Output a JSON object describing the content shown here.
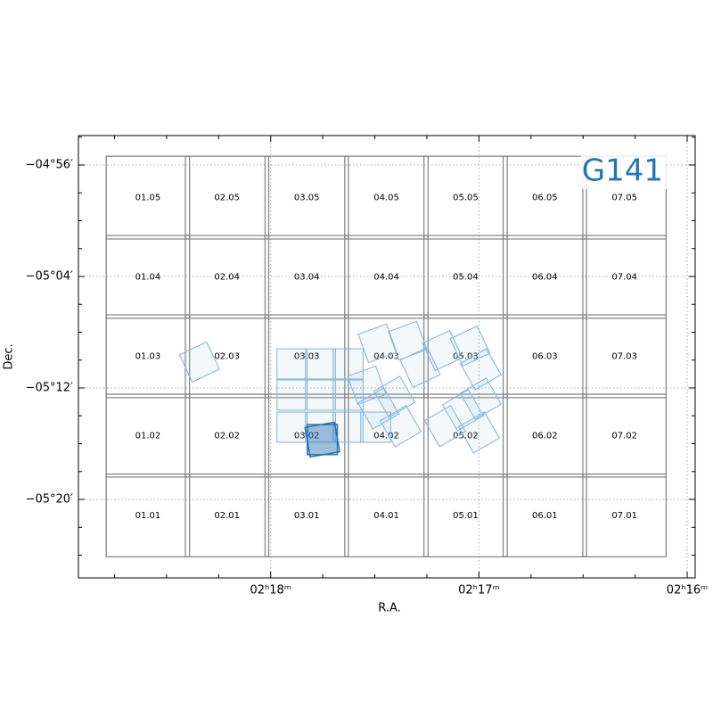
{
  "chart_data": {
    "type": "footprint",
    "title": "G141",
    "title_color": "#1f77b4",
    "xlabel": "R.A.",
    "ylabel": "Dec.",
    "xlim": [
      34.7308,
      33.9904
    ],
    "ylim": [
      -5.4272,
      -4.8981
    ],
    "xticks": [
      {
        "value": 34.5,
        "label": "02ʰ18ᵐ"
      },
      {
        "value": 34.25,
        "label": "02ʰ17ᵐ"
      },
      {
        "value": 34.0,
        "label": "02ʰ16ᵐ"
      }
    ],
    "yticks": [
      {
        "value": -4.9333,
        "label": "−04°56′"
      },
      {
        "value": -5.0667,
        "label": "−05°04′"
      },
      {
        "value": -5.2,
        "label": "−05°12′"
      },
      {
        "value": -5.3333,
        "label": "−05°20′"
      }
    ],
    "xminorticks": [
      34.6875,
      34.625,
      34.5625,
      34.4375,
      34.375,
      34.3125,
      34.1875,
      34.125,
      34.0625
    ],
    "yminorticks": [
      -4.9,
      -4.9667,
      -5.0,
      -5.0333,
      -5.1,
      -5.1333,
      -5.1667,
      -5.2333,
      -5.2667,
      -5.3,
      -5.3667,
      -5.4
    ],
    "grid": true,
    "tile_color": "#808080",
    "tile_width": 0.1,
    "tile_height": 0.099,
    "tiles": [
      {
        "label": "01.05",
        "ra": 34.6474,
        "dec": -4.9723
      },
      {
        "label": "02.05",
        "ra": 34.5524,
        "dec": -4.9723
      },
      {
        "label": "03.05",
        "ra": 34.4567,
        "dec": -4.9723
      },
      {
        "label": "04.05",
        "ra": 34.3611,
        "dec": -4.9723
      },
      {
        "label": "05.05",
        "ra": 34.266,
        "dec": -4.9723
      },
      {
        "label": "06.05",
        "ra": 34.1709,
        "dec": -4.9723
      },
      {
        "label": "07.05",
        "ra": 34.0753,
        "dec": -4.9723
      },
      {
        "label": "01.04",
        "ra": 34.6474,
        "dec": -5.0672
      },
      {
        "label": "02.04",
        "ra": 34.5524,
        "dec": -5.0672
      },
      {
        "label": "03.04",
        "ra": 34.4567,
        "dec": -5.0672
      },
      {
        "label": "04.04",
        "ra": 34.3611,
        "dec": -5.0672
      },
      {
        "label": "05.04",
        "ra": 34.266,
        "dec": -5.0672
      },
      {
        "label": "06.04",
        "ra": 34.1709,
        "dec": -5.0672
      },
      {
        "label": "07.04",
        "ra": 34.0753,
        "dec": -5.0672
      },
      {
        "label": "01.03",
        "ra": 34.6474,
        "dec": -5.1621
      },
      {
        "label": "02.03",
        "ra": 34.5524,
        "dec": -5.1621
      },
      {
        "label": "03.03",
        "ra": 34.4567,
        "dec": -5.1621
      },
      {
        "label": "04.03",
        "ra": 34.3611,
        "dec": -5.1621
      },
      {
        "label": "05.03",
        "ra": 34.266,
        "dec": -5.1621
      },
      {
        "label": "06.03",
        "ra": 34.1709,
        "dec": -5.1621
      },
      {
        "label": "07.03",
        "ra": 34.0753,
        "dec": -5.1621
      },
      {
        "label": "01.02",
        "ra": 34.6474,
        "dec": -5.2571
      },
      {
        "label": "02.02",
        "ra": 34.5524,
        "dec": -5.2571
      },
      {
        "label": "03.02",
        "ra": 34.4567,
        "dec": -5.2571
      },
      {
        "label": "04.02",
        "ra": 34.3611,
        "dec": -5.2571
      },
      {
        "label": "05.02",
        "ra": 34.266,
        "dec": -5.2571
      },
      {
        "label": "06.02",
        "ra": 34.1709,
        "dec": -5.2571
      },
      {
        "label": "07.02",
        "ra": 34.0753,
        "dec": -5.2571
      },
      {
        "label": "01.01",
        "ra": 34.6474,
        "dec": -5.3525
      },
      {
        "label": "02.01",
        "ra": 34.5524,
        "dec": -5.3525
      },
      {
        "label": "03.01",
        "ra": 34.4567,
        "dec": -5.3525
      },
      {
        "label": "04.01",
        "ra": 34.3611,
        "dec": -5.3525
      },
      {
        "label": "05.01",
        "ra": 34.266,
        "dec": -5.3525
      },
      {
        "label": "06.01",
        "ra": 34.1709,
        "dec": -5.3525
      },
      {
        "label": "07.01",
        "ra": 34.0753,
        "dec": -5.3525
      }
    ],
    "footprint_size": 0.036,
    "footprint_color": "#8db8dc",
    "highlight_color": "#1f6fb0",
    "footprints": [
      {
        "ra": 34.5855,
        "dec": -5.169,
        "angle": -25,
        "highlight": false
      },
      {
        "ra": 34.4744,
        "dec": -5.1712,
        "angle": 0,
        "highlight": false
      },
      {
        "ra": 34.4402,
        "dec": -5.1712,
        "angle": 0,
        "highlight": false
      },
      {
        "ra": 34.4071,
        "dec": -5.1712,
        "angle": 0,
        "highlight": false
      },
      {
        "ra": 34.4744,
        "dec": -5.2085,
        "angle": 0,
        "highlight": false
      },
      {
        "ra": 34.4402,
        "dec": -5.2085,
        "angle": 0,
        "highlight": false
      },
      {
        "ra": 34.4071,
        "dec": -5.2085,
        "angle": 0,
        "highlight": false
      },
      {
        "ra": 34.4744,
        "dec": -5.2469,
        "angle": 0,
        "highlight": false
      },
      {
        "ra": 34.4402,
        "dec": -5.2469,
        "angle": 0,
        "highlight": false
      },
      {
        "ra": 34.4071,
        "dec": -5.2469,
        "angle": 0,
        "highlight": false
      },
      {
        "ra": 34.3739,
        "dec": -5.2469,
        "angle": 0,
        "highlight": false
      },
      {
        "ra": 34.3718,
        "dec": -5.1466,
        "angle": -20,
        "highlight": false
      },
      {
        "ra": 34.3355,
        "dec": -5.1434,
        "angle": -20,
        "highlight": false
      },
      {
        "ra": 34.3846,
        "dec": -5.1968,
        "angle": -20,
        "highlight": false
      },
      {
        "ra": 34.3205,
        "dec": -5.1754,
        "angle": -25,
        "highlight": false
      },
      {
        "ra": 34.2938,
        "dec": -5.1552,
        "angle": -25,
        "highlight": false
      },
      {
        "ra": 34.2607,
        "dec": -5.1498,
        "angle": -25,
        "highlight": false
      },
      {
        "ra": 34.2479,
        "dec": -5.1776,
        "angle": -30,
        "highlight": false
      },
      {
        "ra": 34.3515,
        "dec": -5.2106,
        "angle": -30,
        "highlight": false
      },
      {
        "ra": 34.3707,
        "dec": -5.2245,
        "angle": -30,
        "highlight": false
      },
      {
        "ra": 34.344,
        "dec": -5.2458,
        "angle": -30,
        "highlight": false
      },
      {
        "ra": 34.2906,
        "dec": -5.2458,
        "angle": -30,
        "highlight": false
      },
      {
        "ra": 34.2692,
        "dec": -5.2266,
        "angle": -30,
        "highlight": false
      },
      {
        "ra": 34.2479,
        "dec": -5.2128,
        "angle": -30,
        "highlight": false
      },
      {
        "ra": 34.25,
        "dec": -5.2533,
        "angle": -30,
        "highlight": false
      },
      {
        "ra": 34.438,
        "dec": -5.2618,
        "angle": 0,
        "highlight": true
      },
      {
        "ra": 34.438,
        "dec": -5.2618,
        "angle": -10,
        "highlight": true
      }
    ]
  }
}
